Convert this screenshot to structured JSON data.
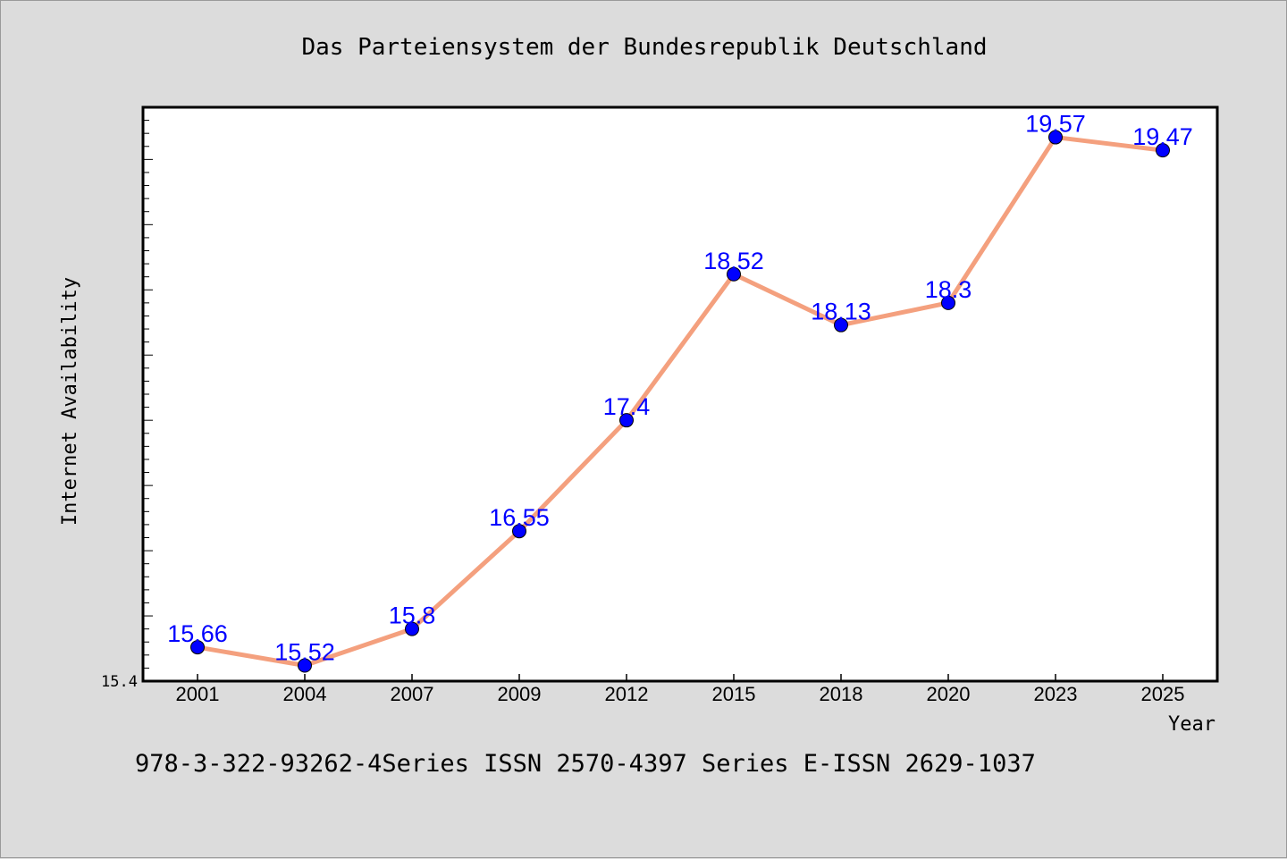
{
  "chart_data": {
    "type": "line",
    "title": "Das Parteiensystem der Bundesrepublik Deutschland",
    "xlabel": "Year",
    "ylabel": "Internet Availability",
    "categories": [
      "2001",
      "2004",
      "2007",
      "2009",
      "2012",
      "2015",
      "2018",
      "2020",
      "2023",
      "2025"
    ],
    "series": [
      {
        "values": [
          15.66,
          15.52,
          15.8,
          16.55,
          17.4,
          18.52,
          18.13,
          18.3,
          19.57,
          19.47
        ],
        "labels": [
          "15.66",
          "15.52",
          "15.8",
          "16.55",
          "17.4",
          "18.52",
          "18.13",
          "18.3",
          "19.57",
          "19.47"
        ],
        "line_color": "#f4a07e",
        "marker_color": "#0000ff"
      }
    ],
    "ylim": [
      15.4,
      19.8
    ],
    "y_tick_labels": [
      "15.4"
    ],
    "grid": false,
    "legend": "none"
  },
  "footer_text": "978-3-322-93262-4Series ISSN 2570-4397 Series E-ISSN 2629-1037",
  "colors": {
    "background": "#dcdcdc",
    "plot_background": "#ffffff",
    "line": "#f4a07e",
    "marker": "#0000ff",
    "data_label": "#0000ff"
  }
}
